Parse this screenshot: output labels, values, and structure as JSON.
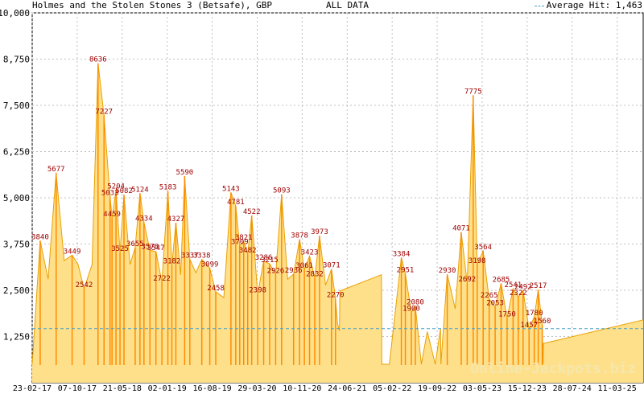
{
  "chart_data": {
    "type": "area",
    "title": "Holmes and the Stolen Stones 3 (Betsafe), GBP",
    "subtitle": "ALL DATA",
    "legend": {
      "label": "Average Hit: 1,463",
      "placement": "top-right"
    },
    "watermark": "Online-Jackpots.biz",
    "ylim": [
      0,
      10000
    ],
    "y_ticks": [
      "1,250",
      "2,500",
      "3,750",
      "5,000",
      "6,250",
      "7,500",
      "8,750",
      "10,000"
    ],
    "y_tick_values": [
      1250,
      2500,
      3750,
      5000,
      6250,
      7500,
      8750,
      10000
    ],
    "x_ticks": [
      "23-02-17",
      "07-10-17",
      "21-05-18",
      "02-01-19",
      "16-08-19",
      "29-03-20",
      "10-11-20",
      "24-06-21",
      "05-02-22",
      "19-09-22",
      "03-05-23",
      "15-12-23",
      "28-07-24",
      "11-03-25"
    ],
    "average_hit": 1463,
    "grid": true,
    "colors": {
      "fill": "#ffe08a",
      "line": "#e8a000",
      "hits": "#ff8c00",
      "labels": "#a00000",
      "average": "#4aa0c8"
    },
    "series": [
      {
        "values": [
          [
            0.0,
            500
          ],
          [
            0.02,
            3840
          ],
          [
            0.04,
            2800
          ],
          [
            0.06,
            5677
          ],
          [
            0.08,
            3300
          ],
          [
            0.1,
            3449
          ],
          [
            0.115,
            3200
          ],
          [
            0.13,
            2542
          ],
          [
            0.15,
            3200
          ],
          [
            0.165,
            8636
          ],
          [
            0.18,
            7227
          ],
          [
            0.195,
            5033
          ],
          [
            0.2,
            4459
          ],
          [
            0.21,
            5204
          ],
          [
            0.22,
            3525
          ],
          [
            0.23,
            5082
          ],
          [
            0.245,
            3196
          ],
          [
            0.258,
            3655
          ],
          [
            0.27,
            5124
          ],
          [
            0.28,
            4334
          ],
          [
            0.295,
            3578
          ],
          [
            0.31,
            3547
          ],
          [
            0.325,
            2722
          ],
          [
            0.34,
            5183
          ],
          [
            0.35,
            3182
          ],
          [
            0.36,
            4327
          ],
          [
            0.372,
            2916
          ],
          [
            0.382,
            5590
          ],
          [
            0.395,
            3337
          ],
          [
            0.41,
            2971
          ],
          [
            0.425,
            3338
          ],
          [
            0.445,
            3099
          ],
          [
            0.46,
            2458
          ],
          [
            0.48,
            2299
          ],
          [
            0.498,
            5143
          ],
          [
            0.51,
            4781
          ],
          [
            0.52,
            3709
          ],
          [
            0.53,
            3821
          ],
          [
            0.54,
            3482
          ],
          [
            0.55,
            4522
          ],
          [
            0.565,
            2398
          ],
          [
            0.58,
            3286
          ],
          [
            0.595,
            3215
          ],
          [
            0.61,
            2926
          ],
          [
            0.625,
            5093
          ],
          [
            0.64,
            2800
          ],
          [
            0.655,
            2936
          ],
          [
            0.67,
            3878
          ],
          [
            0.682,
            3061
          ],
          [
            0.695,
            3423
          ],
          [
            0.708,
            2832
          ],
          [
            0.72,
            3973
          ],
          [
            0.735,
            2638
          ],
          [
            0.75,
            3071
          ],
          [
            0.76,
            2270
          ],
          [
            0.765,
            1600
          ],
          [
            0.77,
            1400
          ],
          [
            0.771,
            2480
          ],
          [
            0.875,
            2920
          ],
          [
            0.876,
            500
          ],
          [
            0.895,
            500
          ],
          [
            0.925,
            3384
          ],
          [
            0.935,
            2951
          ],
          [
            0.95,
            1900
          ],
          [
            0.96,
            2080
          ],
          [
            0.975,
            500
          ],
          [
            0.99,
            1380
          ],
          [
            1.01,
            500
          ],
          [
            1.023,
            1470
          ],
          [
            1.024,
            500
          ],
          [
            1.04,
            2930
          ],
          [
            1.06,
            2000
          ],
          [
            1.075,
            4071
          ],
          [
            1.09,
            2692
          ],
          [
            1.105,
            7775
          ],
          [
            1.115,
            3198
          ],
          [
            1.13,
            3564
          ],
          [
            1.145,
            2265
          ],
          [
            1.16,
            2053
          ],
          [
            1.175,
            2685
          ],
          [
            1.19,
            1750
          ],
          [
            1.205,
            2541
          ],
          [
            1.218,
            2322
          ],
          [
            1.23,
            2492
          ],
          [
            1.245,
            1457
          ],
          [
            1.258,
            1780
          ],
          [
            1.268,
            2517
          ],
          [
            1.278,
            1560
          ],
          [
            1.28,
            500
          ],
          [
            1.281,
            1060
          ],
          [
            1.531,
            1700
          ]
        ]
      }
    ],
    "hit_labels": [
      {
        "x": 0.02,
        "v": 3840
      },
      {
        "x": 0.06,
        "v": 5677
      },
      {
        "x": 0.1,
        "v": 3449
      },
      {
        "x": 0.13,
        "v": 2542
      },
      {
        "x": 0.165,
        "v": 8636
      },
      {
        "x": 0.18,
        "v": 7227
      },
      {
        "x": 0.195,
        "v": 5033
      },
      {
        "x": 0.21,
        "v": 5204
      },
      {
        "x": 0.23,
        "v": 5082
      },
      {
        "x": 0.2,
        "v": 4459
      },
      {
        "x": 0.22,
        "v": 3525
      },
      {
        "x": 0.258,
        "v": 3655
      },
      {
        "x": 0.27,
        "v": 5124
      },
      {
        "x": 0.28,
        "v": 4334
      },
      {
        "x": 0.295,
        "v": 3578
      },
      {
        "x": 0.31,
        "v": 3547
      },
      {
        "x": 0.325,
        "v": 2722
      },
      {
        "x": 0.34,
        "v": 5183
      },
      {
        "x": 0.35,
        "v": 3182
      },
      {
        "x": 0.36,
        "v": 4327
      },
      {
        "x": 0.382,
        "v": 5590
      },
      {
        "x": 0.395,
        "v": 3337
      },
      {
        "x": 0.425,
        "v": 3338
      },
      {
        "x": 0.445,
        "v": 3099
      },
      {
        "x": 0.46,
        "v": 2458
      },
      {
        "x": 0.498,
        "v": 5143
      },
      {
        "x": 0.51,
        "v": 4781
      },
      {
        "x": 0.52,
        "v": 3709
      },
      {
        "x": 0.53,
        "v": 3821
      },
      {
        "x": 0.54,
        "v": 3482
      },
      {
        "x": 0.55,
        "v": 4522
      },
      {
        "x": 0.565,
        "v": 2398
      },
      {
        "x": 0.58,
        "v": 3286
      },
      {
        "x": 0.595,
        "v": 3215
      },
      {
        "x": 0.61,
        "v": 2926
      },
      {
        "x": 0.625,
        "v": 5093
      },
      {
        "x": 0.655,
        "v": 2936
      },
      {
        "x": 0.67,
        "v": 3878
      },
      {
        "x": 0.682,
        "v": 3061
      },
      {
        "x": 0.695,
        "v": 3423
      },
      {
        "x": 0.708,
        "v": 2832
      },
      {
        "x": 0.72,
        "v": 3973
      },
      {
        "x": 0.75,
        "v": 3071
      },
      {
        "x": 0.76,
        "v": 2270
      },
      {
        "x": 0.925,
        "v": 3384
      },
      {
        "x": 0.935,
        "v": 2951
      },
      {
        "x": 0.95,
        "v": 1900
      },
      {
        "x": 0.96,
        "v": 2080
      },
      {
        "x": 1.04,
        "v": 2930
      },
      {
        "x": 1.075,
        "v": 4071
      },
      {
        "x": 1.09,
        "v": 2692
      },
      {
        "x": 1.105,
        "v": 7775
      },
      {
        "x": 1.115,
        "v": 3198
      },
      {
        "x": 1.13,
        "v": 3564
      },
      {
        "x": 1.145,
        "v": 2265
      },
      {
        "x": 1.16,
        "v": 2053
      },
      {
        "x": 1.175,
        "v": 2685
      },
      {
        "x": 1.19,
        "v": 1750
      },
      {
        "x": 1.205,
        "v": 2541
      },
      {
        "x": 1.218,
        "v": 2322
      },
      {
        "x": 1.23,
        "v": 2492
      },
      {
        "x": 1.245,
        "v": 1457
      },
      {
        "x": 1.258,
        "v": 1780
      },
      {
        "x": 1.268,
        "v": 2517
      },
      {
        "x": 1.278,
        "v": 1560
      }
    ]
  }
}
